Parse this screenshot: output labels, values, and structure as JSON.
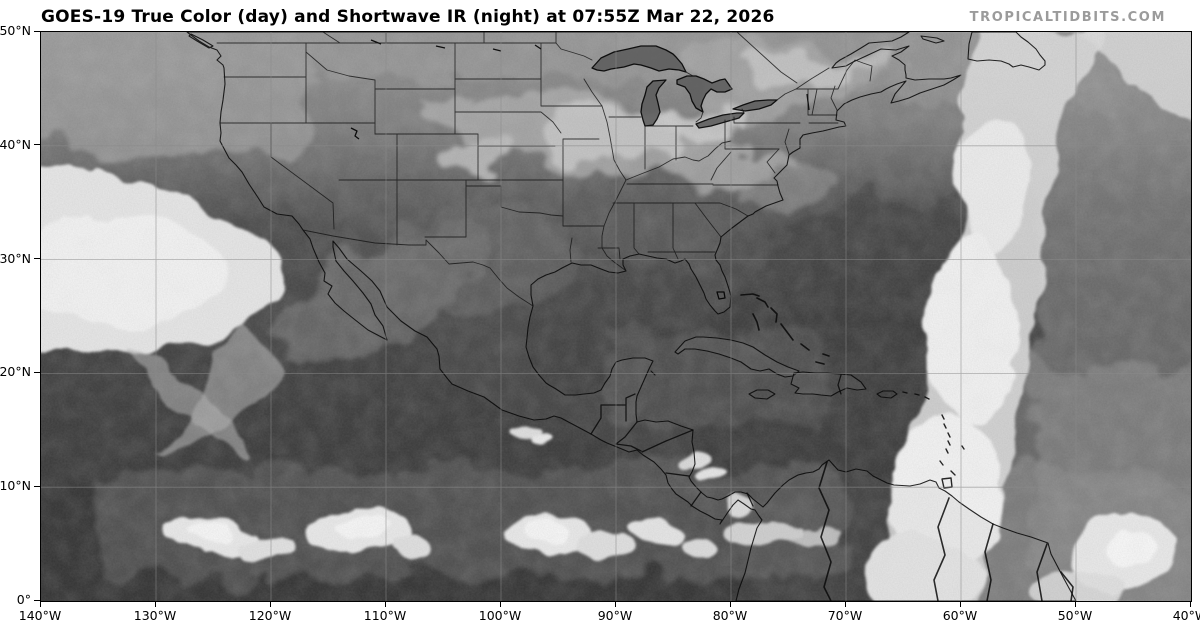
{
  "header": {
    "title": "GOES-19 True Color (day) and Shortwave IR (night) at 07:55Z Mar 22, 2026",
    "watermark": "TROPICALTIDBITS.COM"
  },
  "map": {
    "satellite": "GOES-19",
    "product": "True Color (day) and Shortwave IR (night)",
    "valid_time": "07:55Z Mar 22, 2026",
    "axes": {
      "lat_ticks": [
        "50°N",
        "40°N",
        "30°N",
        "20°N",
        "10°N",
        "0°"
      ],
      "lon_ticks": [
        "140°W",
        "130°W",
        "120°W",
        "110°W",
        "100°W",
        "90°W",
        "80°W",
        "70°W",
        "60°W",
        "50°W",
        "40°W"
      ],
      "grid_interval_deg": 10
    },
    "colors": {
      "page_background": "#ffffff",
      "title_text": "#000000",
      "watermark_text": "#9b9b9b",
      "ocean_dark": "#3a3a3a",
      "ocean_north": "#8f8f8f",
      "land_mid": "#6f6f6f",
      "cloud_bright": "#f4f4f4",
      "grid_line": "#888888",
      "outline": "#000000",
      "frame": "#000000"
    }
  }
}
